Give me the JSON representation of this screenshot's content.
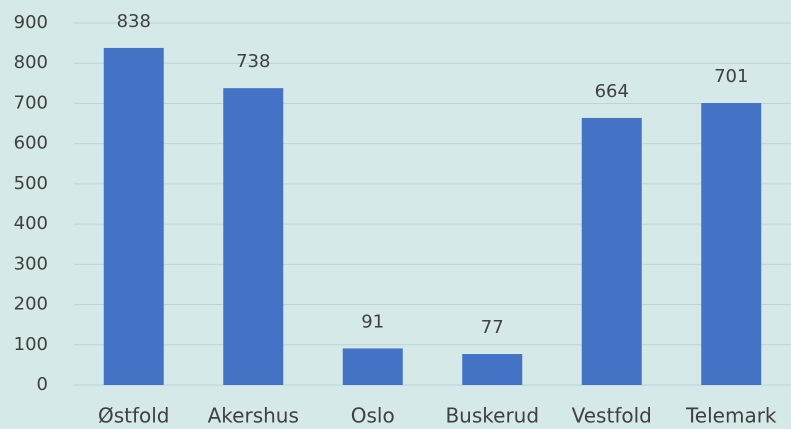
{
  "chart_data": {
    "type": "bar",
    "categories": [
      "Østfold",
      "Akershus",
      "Oslo",
      "Buskerud",
      "Vestfold",
      "Telemark"
    ],
    "values": [
      838,
      738,
      91,
      77,
      664,
      701
    ],
    "color": "#4472c4",
    "ylim": [
      0,
      900
    ],
    "yticks": [
      0,
      100,
      200,
      300,
      400,
      500,
      600,
      700,
      800,
      900
    ],
    "grid": true
  }
}
